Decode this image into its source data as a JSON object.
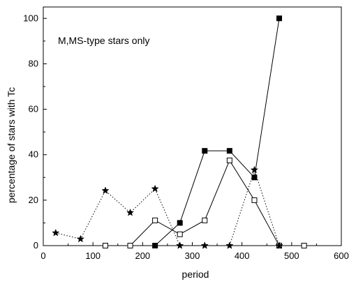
{
  "chart_data": {
    "type": "line",
    "title": "",
    "xlabel": "period",
    "ylabel": "percentage of stars with Tc",
    "xlim": [
      0,
      600
    ],
    "ylim": [
      0,
      105
    ],
    "xticks": [
      0,
      100,
      200,
      300,
      400,
      500,
      600
    ],
    "yticks": [
      0,
      20,
      40,
      60,
      80,
      100
    ],
    "grid": false,
    "annotation": "M,MS-type stars only",
    "series": [
      {
        "marker": "filled-square",
        "line": "solid",
        "color": "#000000",
        "x": [
          225,
          275,
          325,
          375,
          425,
          475
        ],
        "y": [
          0,
          10,
          41.7,
          41.7,
          30,
          100
        ]
      },
      {
        "marker": "open-square",
        "line": "solid",
        "color": "#000000",
        "x": [
          125,
          175,
          225,
          275,
          325,
          375,
          425,
          475,
          525
        ],
        "y": [
          0,
          0,
          11.1,
          5,
          11.1,
          37.5,
          20,
          0,
          0
        ]
      },
      {
        "marker": "star",
        "line": "dotted",
        "color": "#000000",
        "x": [
          25,
          75,
          125,
          175,
          225,
          275,
          325,
          375,
          425,
          475
        ],
        "y": [
          5.6,
          2.9,
          24.2,
          14.5,
          25,
          0,
          0,
          0,
          33.3,
          0
        ]
      }
    ]
  }
}
